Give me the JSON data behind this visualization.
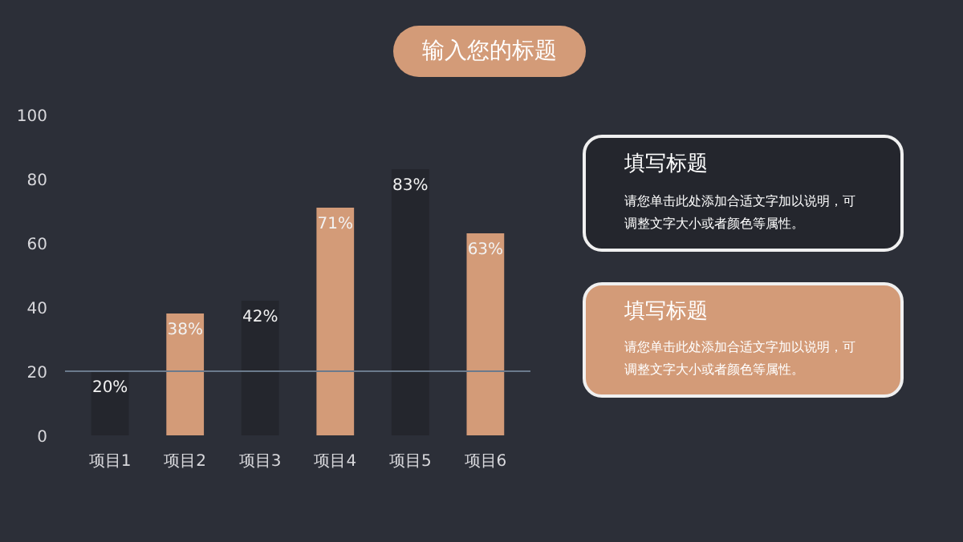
{
  "chart_data": {
    "type": "bar",
    "title": "输入您的标题",
    "categories": [
      "项目1",
      "项目2",
      "项目3",
      "项目4",
      "项目5",
      "项目6"
    ],
    "values": [
      20,
      38,
      42,
      71,
      83,
      63
    ],
    "colors": [
      "#24262d",
      "#d39b78",
      "#24262d",
      "#d39b78",
      "#24262d",
      "#d39b78"
    ],
    "value_labels": [
      "20%",
      "38%",
      "42%",
      "71%",
      "83%",
      "63%"
    ],
    "ylim": [
      0,
      100
    ],
    "yticks": [
      0,
      20,
      40,
      60,
      80,
      100
    ],
    "grid": false,
    "ref_lines": [
      {
        "axis": "y",
        "value": 20,
        "color": "#6b7a8c"
      }
    ],
    "annotations": [
      "填写标题",
      "请您单击此处添加合适文字加以说明，可调整文字大小或者颜色等属性。",
      "填写标题",
      "请您单击此处添加合适文字加以说明，可调整文字大小或者颜色等属性。"
    ]
  }
}
